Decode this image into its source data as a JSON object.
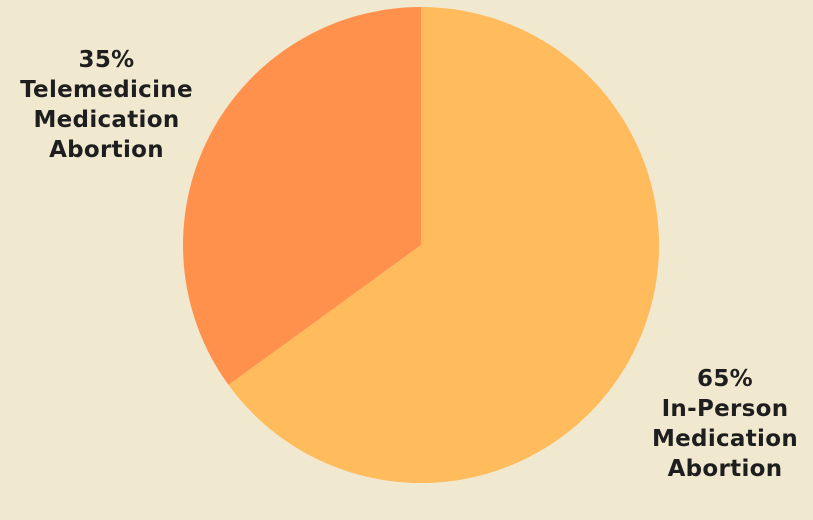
{
  "chart_data": {
    "type": "pie",
    "slices": [
      {
        "value": 65,
        "percent_label": "65%",
        "label_lines": [
          "In-Person",
          "Medication",
          "Abortion"
        ],
        "color": "#ffbb5c"
      },
      {
        "value": 35,
        "percent_label": "35%",
        "label_lines": [
          "Telemedicine",
          "Medication",
          "Abortion"
        ],
        "color": "#ff914d"
      }
    ],
    "start": "12 o'clock",
    "direction": "clockwise"
  },
  "background_color": "#f1e8d0"
}
